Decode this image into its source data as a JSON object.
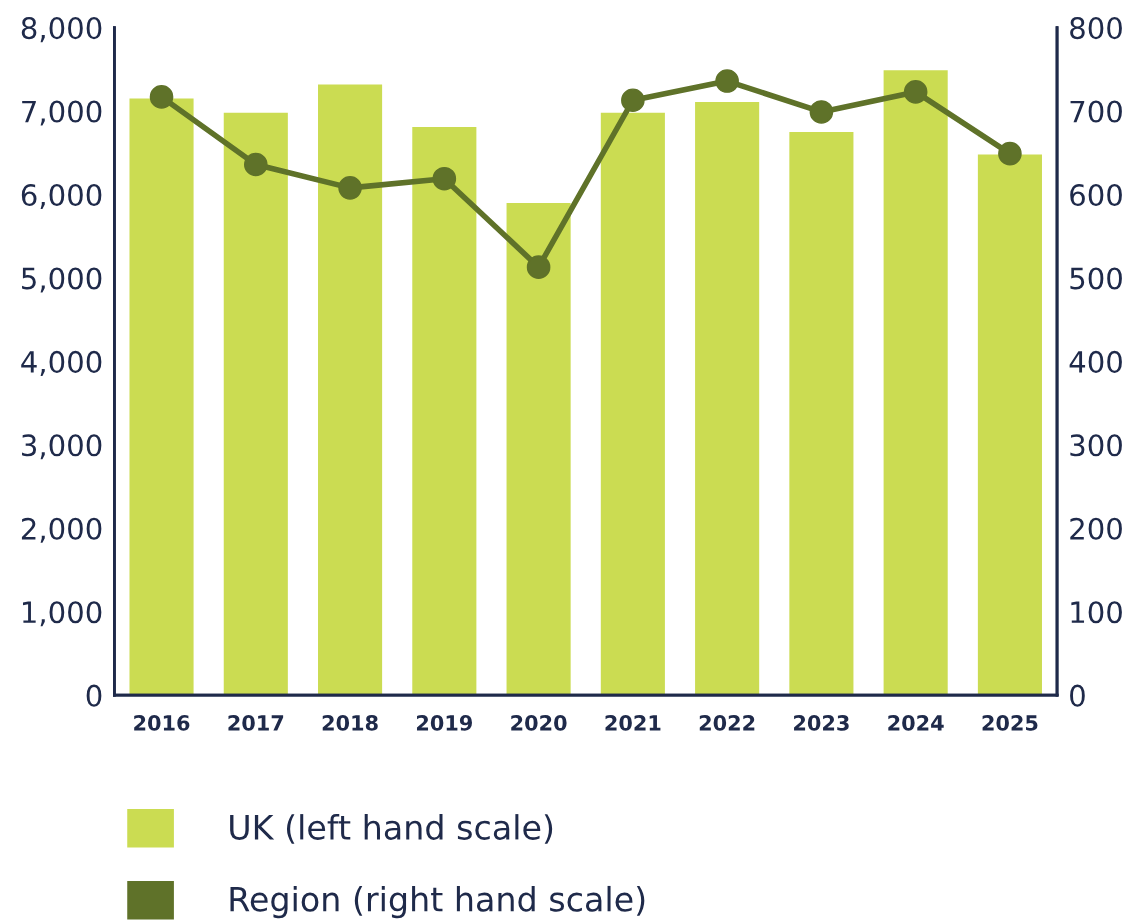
{
  "chart_data": {
    "type": "bar",
    "categories": [
      "2016",
      "2017",
      "2018",
      "2019",
      "2020",
      "2021",
      "2022",
      "2023",
      "2024",
      "2025"
    ],
    "series": [
      {
        "name": "UK (left hand scale)",
        "color": "#cbdc52",
        "values": [
          7150,
          6980,
          7320,
          6810,
          5900,
          6980,
          7110,
          6750,
          7490,
          6480
        ]
      },
      {
        "name": "Region (right hand scale)",
        "type": "line",
        "axis": "y2",
        "color": "#5f7229",
        "marker": "circle",
        "values": [
          717,
          636,
          608,
          619,
          513,
          713,
          736,
          699,
          723,
          649
        ]
      }
    ],
    "ylim": [
      0,
      8000
    ],
    "yticks": [
      0,
      {
        "value": 1000,
        "label": "1,000"
      },
      {
        "value": 2000,
        "label": "2,000"
      },
      {
        "value": 3000,
        "label": "3,000"
      },
      {
        "value": 4000,
        "label": "4,000"
      },
      {
        "value": 5000,
        "label": "5,000"
      },
      {
        "value": 6000,
        "label": "6,000"
      },
      {
        "value": 7000,
        "label": "7,000"
      },
      {
        "value": 8000,
        "label": "8,000"
      }
    ],
    "y2lim": [
      0,
      800
    ],
    "y2ticks": [
      0,
      100,
      200,
      300,
      400,
      500,
      600,
      700,
      800
    ],
    "grid": false,
    "legend": "bottom"
  }
}
